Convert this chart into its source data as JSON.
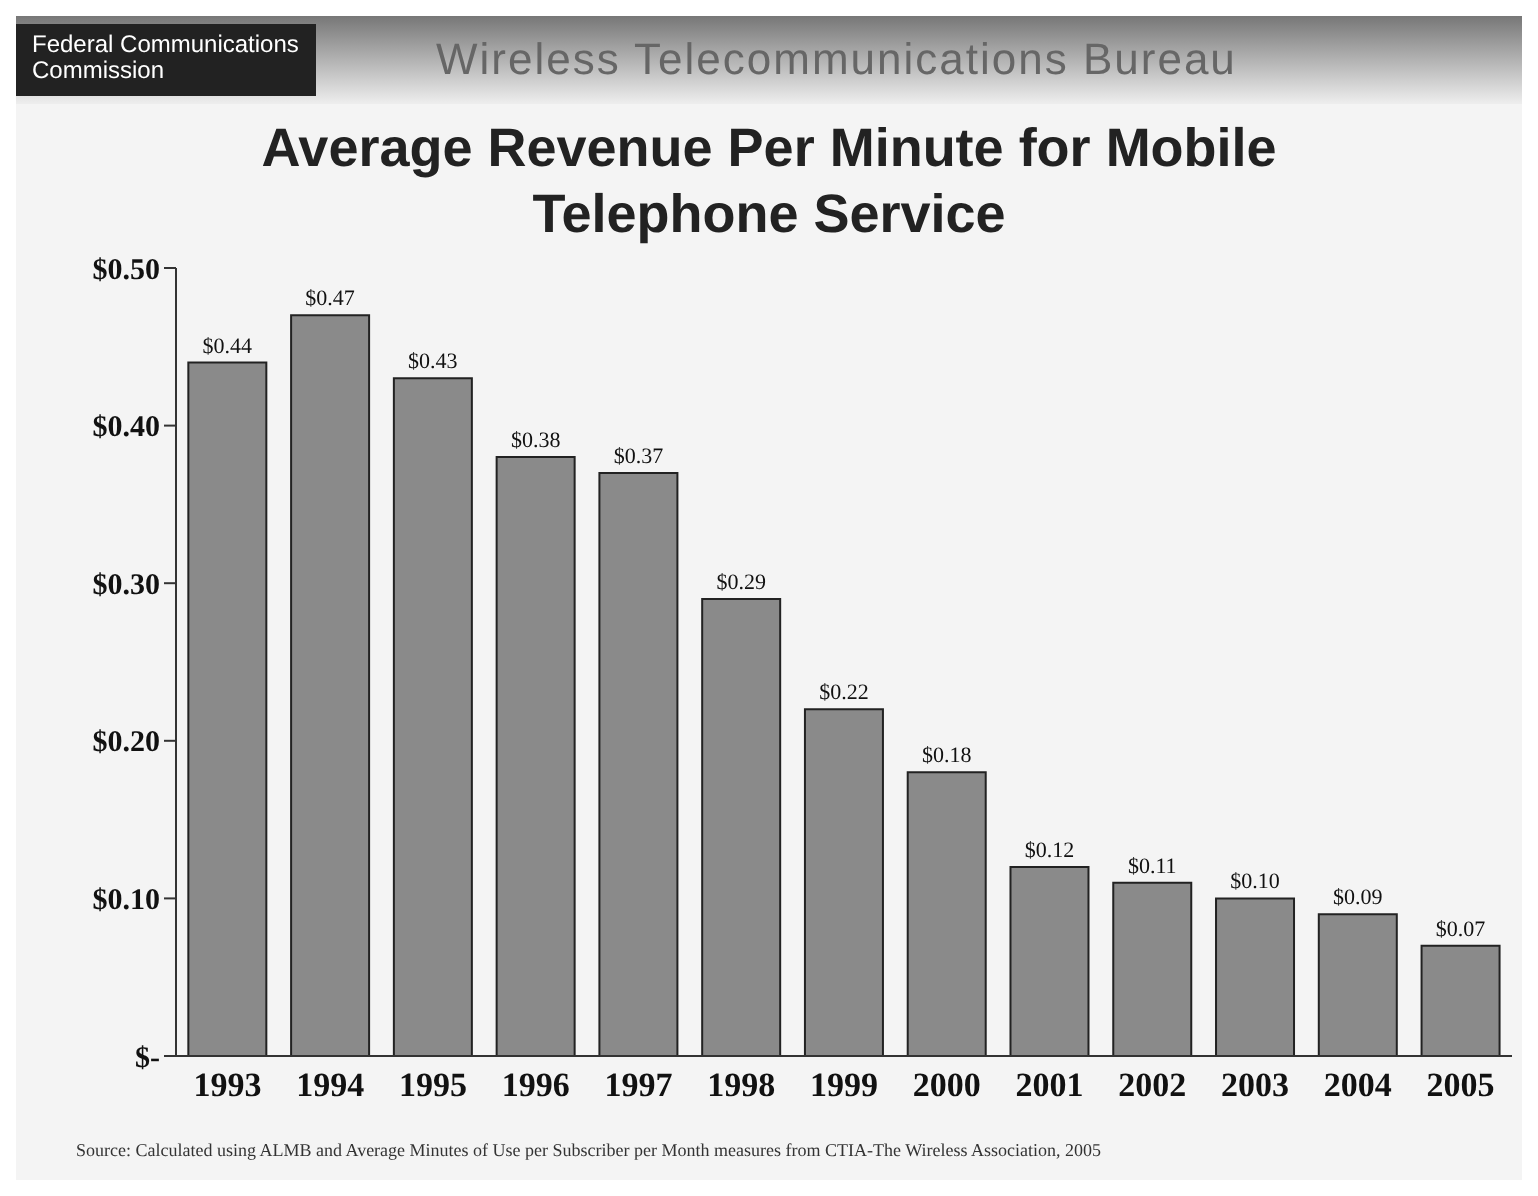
{
  "chart_data": {
    "type": "bar",
    "title": "Average Revenue Per Minute for Mobile Telephone Service",
    "subtitle": "Wireless Telecommunications Bureau",
    "annotations": [
      "Federal Communications Commission",
      "Source: Calculated using ALMB and Average Minutes of Use per Subscriber per Month measures from CTIA-The Wireless Association, 2005"
    ],
    "categories": [
      "1993",
      "1994",
      "1995",
      "1996",
      "1997",
      "1998",
      "1999",
      "2000",
      "2001",
      "2002",
      "2003",
      "2004",
      "2005"
    ],
    "values": [
      0.44,
      0.47,
      0.43,
      0.38,
      0.37,
      0.29,
      0.22,
      0.18,
      0.12,
      0.11,
      0.1,
      0.09,
      0.07
    ],
    "value_labels": [
      "$0.44",
      "$0.47",
      "$0.43",
      "$0.38",
      "$0.37",
      "$0.29",
      "$0.22",
      "$0.18",
      "$0.12",
      "$0.11",
      "$0.10",
      "$0.09",
      "$0.07"
    ],
    "color": "#8a8a8a",
    "ylim": [
      0,
      0.5
    ],
    "yticks": [
      {
        "value": 0,
        "label": "$-"
      },
      {
        "value": 0.1,
        "label": "$0.10"
      },
      {
        "value": 0.2,
        "label": "$0.20"
      },
      {
        "value": 0.3,
        "label": "$0.30"
      },
      {
        "value": 0.4,
        "label": "$0.40"
      },
      {
        "value": 0.5,
        "label": "$0.50"
      }
    ],
    "grid": false,
    "legend": false
  }
}
